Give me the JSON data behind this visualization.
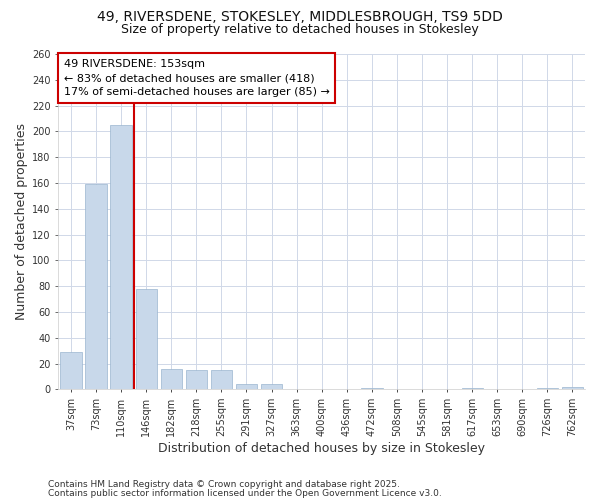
{
  "title_line1": "49, RIVERSDENE, STOKESLEY, MIDDLESBROUGH, TS9 5DD",
  "title_line2": "Size of property relative to detached houses in Stokesley",
  "xlabel": "Distribution of detached houses by size in Stokesley",
  "ylabel": "Number of detached properties",
  "categories": [
    "37sqm",
    "73sqm",
    "110sqm",
    "146sqm",
    "182sqm",
    "218sqm",
    "255sqm",
    "291sqm",
    "327sqm",
    "363sqm",
    "400sqm",
    "436sqm",
    "472sqm",
    "508sqm",
    "545sqm",
    "581sqm",
    "617sqm",
    "653sqm",
    "690sqm",
    "726sqm",
    "762sqm"
  ],
  "values": [
    29,
    159,
    205,
    78,
    16,
    15,
    15,
    4,
    4,
    0,
    0,
    0,
    1,
    0,
    0,
    0,
    1,
    0,
    0,
    1,
    2
  ],
  "bar_color": "#c8d8ea",
  "bar_edge_color": "#9ab5cf",
  "vline_pos": 2.5,
  "vline_color": "#cc0000",
  "annotation_text": "49 RIVERSDENE: 153sqm\n← 83% of detached houses are smaller (418)\n17% of semi-detached houses are larger (85) →",
  "annotation_box_edgecolor": "#cc0000",
  "annotation_box_facecolor": "#ffffff",
  "ylim": [
    0,
    260
  ],
  "yticks": [
    0,
    20,
    40,
    60,
    80,
    100,
    120,
    140,
    160,
    180,
    200,
    220,
    240,
    260
  ],
  "footnote_line1": "Contains HM Land Registry data © Crown copyright and database right 2025.",
  "footnote_line2": "Contains public sector information licensed under the Open Government Licence v3.0.",
  "bg_color": "#ffffff",
  "plot_bg_color": "#ffffff",
  "title_fontsize": 10,
  "subtitle_fontsize": 9,
  "axis_label_fontsize": 9,
  "tick_fontsize": 7,
  "annotation_fontsize": 8,
  "footnote_fontsize": 6.5,
  "grid_color": "#d0d8e8"
}
